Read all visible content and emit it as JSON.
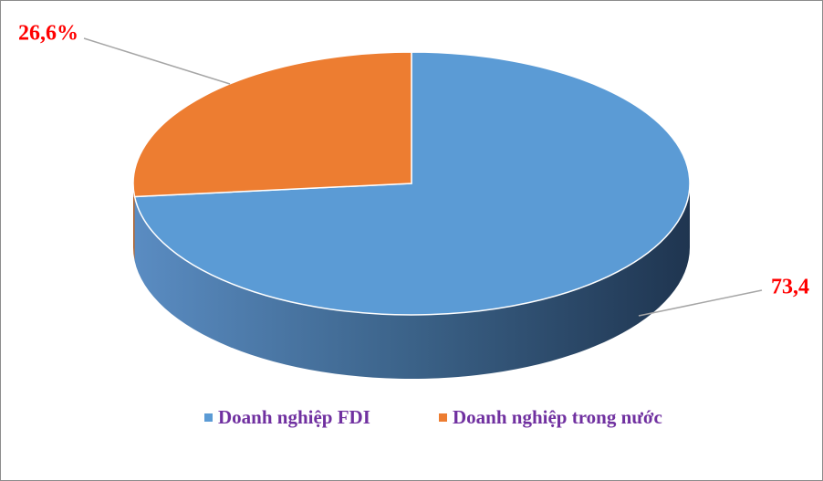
{
  "chart_data": {
    "type": "pie",
    "categories": [
      "Doanh nghiệp FDI",
      "Doanh nghiệp trong nước"
    ],
    "values": [
      73.4,
      26.6
    ],
    "value_labels": [
      "73,4",
      "26,6%"
    ],
    "colors": [
      "#5b9bd5",
      "#ed7d31"
    ],
    "legend": "bottom"
  }
}
